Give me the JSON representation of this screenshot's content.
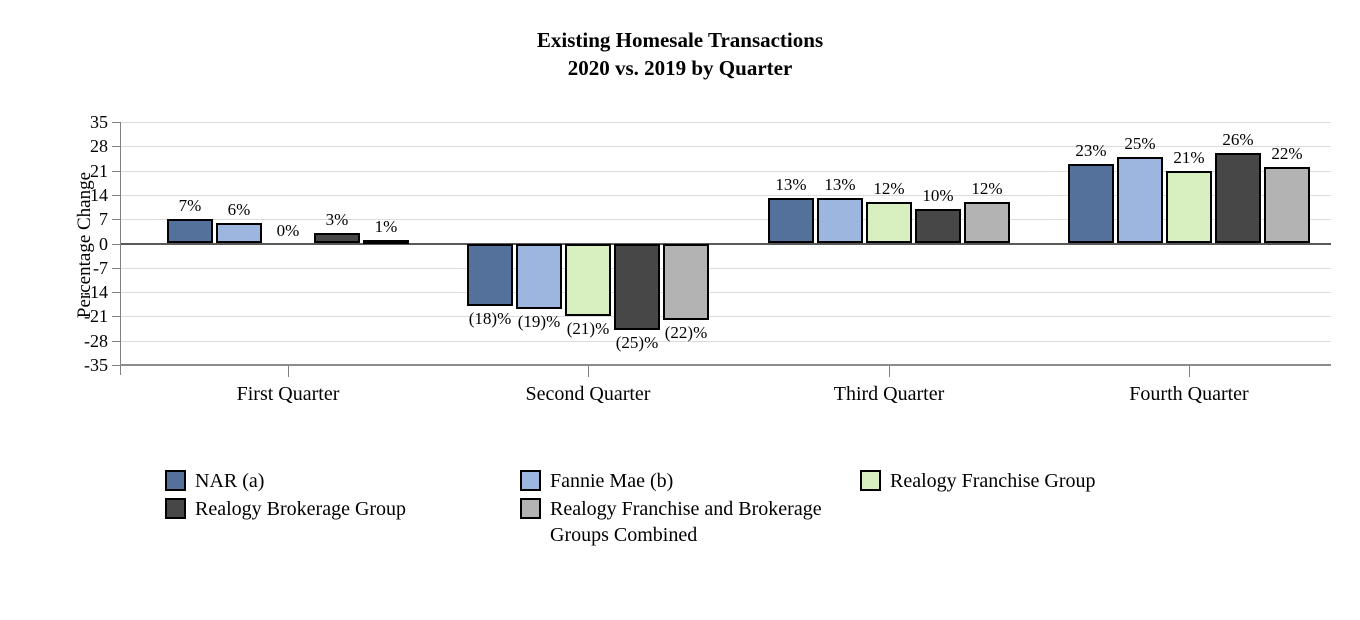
{
  "title": {
    "line1": "Existing Homesale Transactions",
    "line2": "2020 vs. 2019 by Quarter"
  },
  "chart_data": {
    "type": "bar",
    "categories": [
      "First Quarter",
      "Second Quarter",
      "Third Quarter",
      "Fourth Quarter"
    ],
    "series": [
      {
        "name": "NAR (a)",
        "color": "#54719B",
        "values": [
          7,
          -18,
          13,
          23
        ],
        "labels": [
          "7%",
          "(18)%",
          "13%",
          "23%"
        ]
      },
      {
        "name": "Fannie Mae (b)",
        "color": "#9CB6E0",
        "values": [
          6,
          -19,
          13,
          25
        ],
        "labels": [
          "6%",
          "(19)%",
          "13%",
          "25%"
        ]
      },
      {
        "name": "Realogy Franchise Group",
        "color": "#D8F0C0",
        "values": [
          0,
          -21,
          12,
          21
        ],
        "labels": [
          "0%",
          "(21)%",
          "12%",
          "21%"
        ]
      },
      {
        "name": "Realogy Brokerage Group",
        "color": "#474747",
        "values": [
          3,
          -25,
          10,
          26
        ],
        "labels": [
          "3%",
          "(25)%",
          "10%",
          "26%"
        ]
      },
      {
        "name": "Realogy Franchise and Brokerage Groups Combined",
        "color": "#B3B3B3",
        "values": [
          1,
          -22,
          12,
          22
        ],
        "labels": [
          "1%",
          "(22)%",
          "12%",
          "22%"
        ]
      }
    ],
    "ylabel": "Percentage Change",
    "yticks": [
      "35",
      "28",
      "21",
      "14",
      "7",
      "0",
      "-7",
      "-14",
      "-21",
      "-28",
      "-35"
    ],
    "ylim": [
      -35,
      35
    ],
    "grid": true,
    "legend_position": "bottom",
    "colors": {
      "gridline": "#DCDCDC",
      "zero_line": "#595959",
      "axis_line": "#808080",
      "bar_border": "#000000",
      "text": "#000000",
      "background": "#FFFFFF"
    }
  }
}
